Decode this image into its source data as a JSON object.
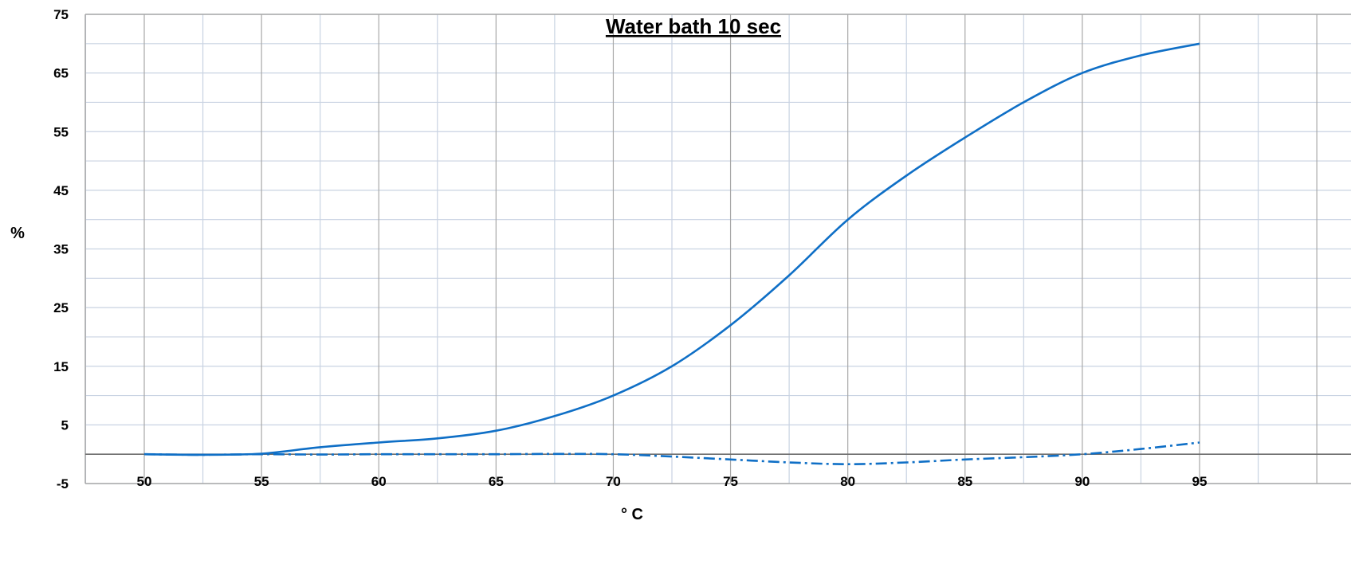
{
  "chart_data": {
    "type": "line",
    "title": "Water bath 10 sec",
    "xlabel": "° C",
    "ylabel": "%",
    "xlim": [
      50,
      95
    ],
    "ylim": [
      -5,
      75
    ],
    "x_ticks": [
      "50",
      "55",
      "60",
      "65",
      "70",
      "75",
      "80",
      "85",
      "90",
      "95"
    ],
    "y_ticks": [
      "-5",
      "5",
      "15",
      "25",
      "35",
      "45",
      "55",
      "65",
      "75"
    ],
    "grid": true,
    "colors": {
      "series": "#0f6fc6",
      "grid_minor": "#c9d3e2",
      "grid_major": "#a8a8a8",
      "zero_line": "#6e6e6e"
    },
    "series": [
      {
        "style": "solid",
        "x": [
          50,
          52.5,
          55,
          57.5,
          60,
          62.5,
          65,
          67.5,
          70,
          72.5,
          75,
          77.5,
          80,
          82.5,
          85,
          87.5,
          90,
          92.5,
          95
        ],
        "y": [
          0,
          -0.1,
          0.1,
          1.2,
          2.0,
          2.7,
          4.0,
          6.5,
          10.0,
          15.0,
          22.0,
          30.5,
          40.0,
          47.5,
          54.0,
          60.0,
          65.0,
          68.0,
          70.0
        ]
      },
      {
        "style": "dash-dot",
        "x": [
          50,
          52.5,
          55,
          57.5,
          60,
          62.5,
          65,
          67.5,
          70,
          72.5,
          75,
          77.5,
          80,
          82.5,
          85,
          87.5,
          90,
          92.5,
          95
        ],
        "y": [
          0,
          -0.1,
          0,
          -0.05,
          0,
          0,
          0,
          0.05,
          0,
          -0.4,
          -0.9,
          -1.4,
          -1.7,
          -1.4,
          -0.9,
          -0.5,
          0,
          0.9,
          2.0
        ]
      }
    ]
  }
}
